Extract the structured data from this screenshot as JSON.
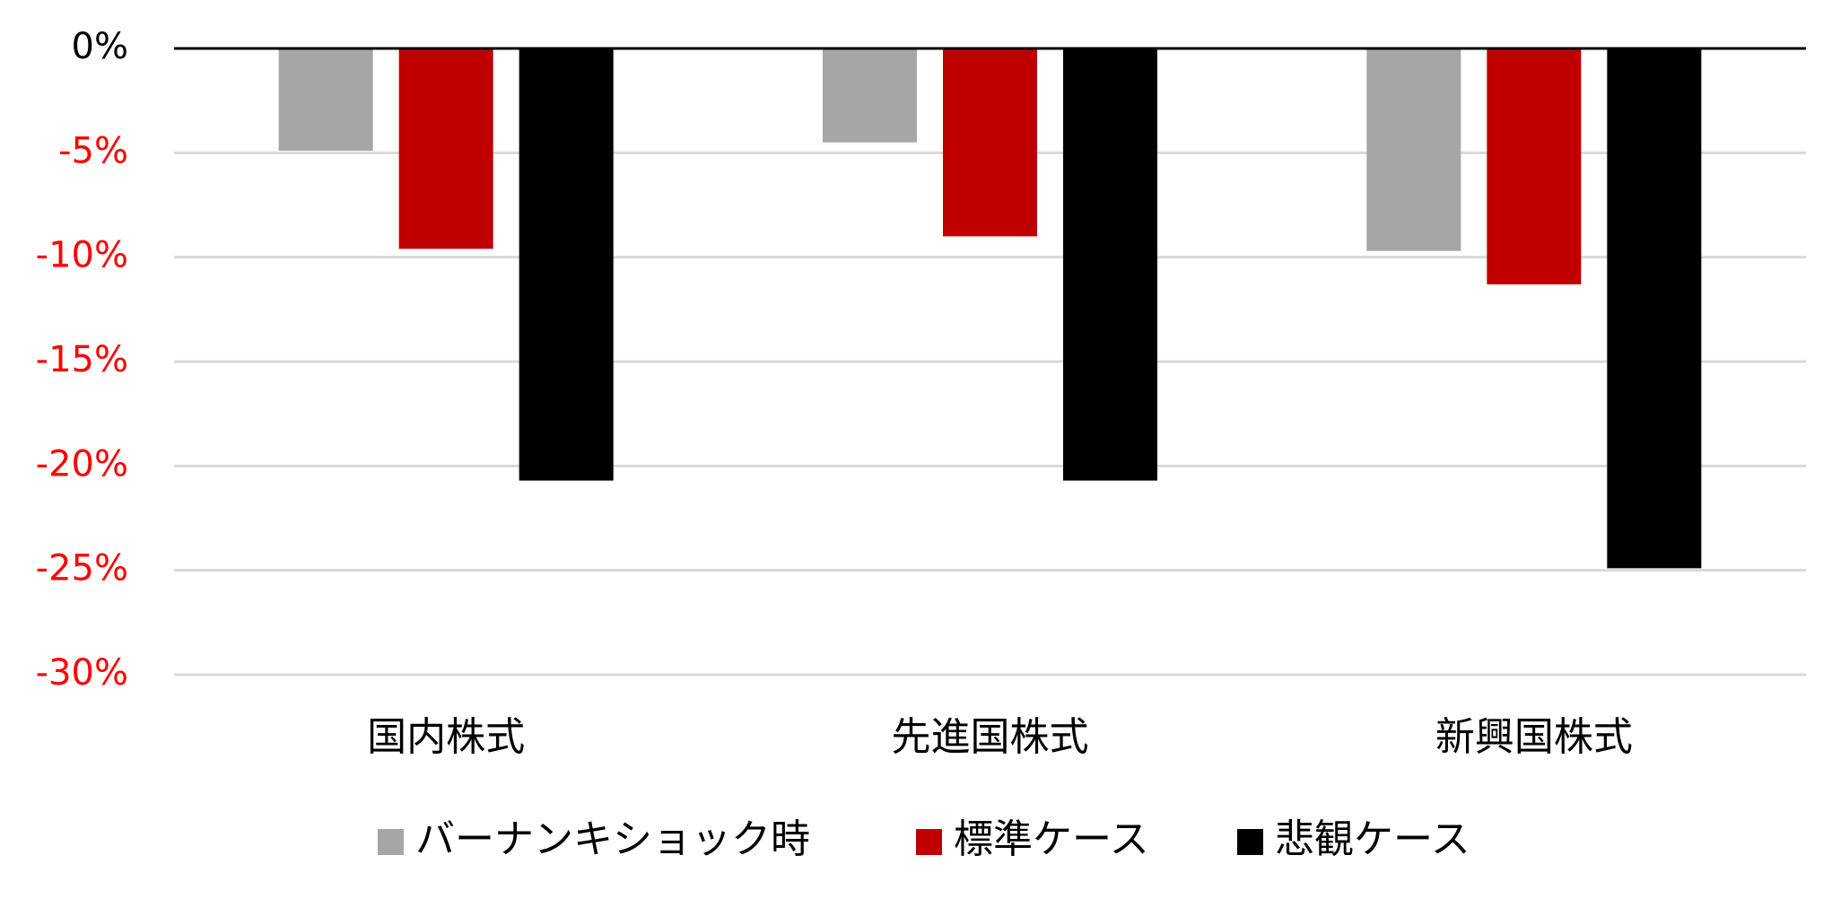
{
  "chart_data": {
    "type": "bar",
    "categories": [
      "国内株式",
      "先進国株式",
      "新興国株式"
    ],
    "series": [
      {
        "name": "バーナンキショック時",
        "color": "#a6a6a6",
        "values": [
          -4.9,
          -4.5,
          -9.7
        ]
      },
      {
        "name": "標準ケース",
        "color": "#c00000",
        "values": [
          -9.6,
          -9.0,
          -11.3
        ]
      },
      {
        "name": "悲観ケース",
        "color": "#000000",
        "values": [
          -20.7,
          -20.7,
          -24.9
        ]
      }
    ],
    "ylim": [
      -30,
      0
    ],
    "yticks": [
      {
        "value": 0,
        "label": "0%"
      },
      {
        "value": -5,
        "label": "-5%"
      },
      {
        "value": -10,
        "label": "-10%"
      },
      {
        "value": -15,
        "label": "-15%"
      },
      {
        "value": -20,
        "label": "-20%"
      },
      {
        "value": -25,
        "label": "-25%"
      },
      {
        "value": -30,
        "label": "-30%"
      }
    ],
    "grid": true,
    "legend": "bottom"
  }
}
